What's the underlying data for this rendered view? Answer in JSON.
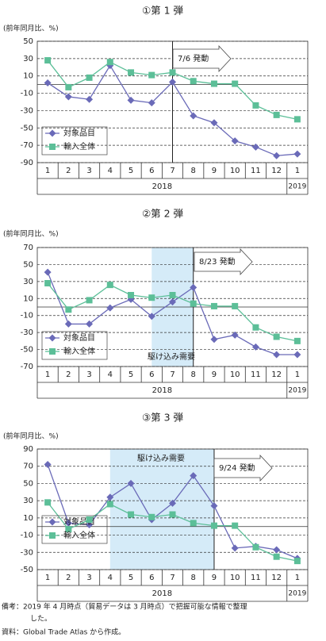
{
  "chart_data": [
    {
      "type": "line",
      "title": "①第 1 弾",
      "y_label": "(前年同月比、%)",
      "categories": [
        "1",
        "2",
        "3",
        "4",
        "5",
        "6",
        "7",
        "8",
        "9",
        "10",
        "11",
        "12",
        "1"
      ],
      "year_labels": [
        "2018",
        "2019"
      ],
      "series": [
        {
          "name": "対象品目",
          "color": "#6a6ab8",
          "marker": "diamond",
          "values": [
            2,
            -14,
            -17,
            22,
            -18,
            -21,
            3,
            -36,
            -44,
            -65,
            -72,
            -82,
            -80
          ]
        },
        {
          "name": "輸入全体",
          "color": "#5cbf98",
          "marker": "square",
          "values": [
            28,
            -3,
            8,
            26,
            14,
            11,
            14,
            4,
            1,
            1,
            -24,
            -35,
            -40
          ]
        }
      ],
      "ylim": [
        -90,
        50
      ],
      "yticks": [
        50,
        30,
        10,
        -10,
        -30,
        -50,
        -70,
        -90
      ],
      "grid": true,
      "legend": "lower left",
      "event_label": "7/6 発動"
    },
    {
      "type": "line",
      "title": "②第 2 弾",
      "y_label": "(前年同月比、%)",
      "categories": [
        "1",
        "2",
        "3",
        "4",
        "5",
        "6",
        "7",
        "8",
        "9",
        "10",
        "11",
        "12",
        "1"
      ],
      "year_labels": [
        "2018",
        "2019"
      ],
      "series": [
        {
          "name": "対象品目",
          "color": "#6a6ab8",
          "marker": "diamond",
          "values": [
            41,
            -20,
            -20,
            -1,
            9,
            -11,
            6,
            23,
            -38,
            -33,
            -47,
            -56,
            -56
          ]
        },
        {
          "name": "輸入全体",
          "color": "#5cbf98",
          "marker": "square",
          "values": [
            28,
            -3,
            8,
            26,
            14,
            11,
            14,
            4,
            1,
            1,
            -24,
            -35,
            -40
          ]
        }
      ],
      "ylim": [
        -70,
        70
      ],
      "yticks": [
        70,
        50,
        30,
        10,
        -10,
        -30,
        -50,
        -70
      ],
      "grid": true,
      "legend": "lower left",
      "event_label": "8/23 発動",
      "shaded_label": "駆け込み需要"
    },
    {
      "type": "line",
      "title": "③第 3 弾",
      "y_label": "(前年同月比、%)",
      "categories": [
        "1",
        "2",
        "3",
        "4",
        "5",
        "6",
        "7",
        "8",
        "9",
        "10",
        "11",
        "12",
        "1"
      ],
      "year_labels": [
        "2018",
        "2019"
      ],
      "series": [
        {
          "name": "対象品目",
          "color": "#6a6ab8",
          "marker": "diamond",
          "values": [
            72,
            4,
            2,
            34,
            50,
            8,
            27,
            59,
            24,
            -25,
            -23,
            -27,
            -37
          ]
        },
        {
          "name": "輸入全体",
          "color": "#5cbf98",
          "marker": "square",
          "values": [
            28,
            -3,
            8,
            26,
            14,
            11,
            14,
            4,
            1,
            1,
            -24,
            -35,
            -40
          ]
        }
      ],
      "ylim": [
        -50,
        90
      ],
      "yticks": [
        90,
        70,
        50,
        30,
        10,
        -10,
        -30,
        -50
      ],
      "grid": true,
      "legend": "lower left",
      "event_label": "9/24 発動",
      "shaded_label": "駆け込み需要"
    }
  ],
  "notes": [
    "備考：2019 年 4 月時点（貿易データは 3 月時点）で把握可能な情報で整理",
    "した。",
    "資料：Global Trade Atlas から作成。"
  ]
}
